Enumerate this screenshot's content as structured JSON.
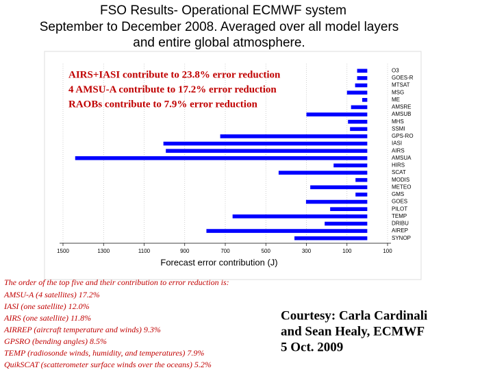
{
  "chart_data": {
    "type": "bar",
    "orientation": "horizontal",
    "title": [
      "FSO Results- Operational ECMWF system",
      "September to December 2008.  Averaged over all model layers",
      "and entire global atmosphere."
    ],
    "xlabel": "Forecast error contribution (J)",
    "categories": [
      "O3",
      "GOES-R",
      "MTSAT",
      "MSG",
      "ME",
      "AMSRE",
      "AMSUB",
      "MHS",
      "SSMI",
      "GPS-RO",
      "IASI",
      "AIRS",
      "AMSUA",
      "HIRS",
      "SCAT",
      "MODIS",
      "METEO",
      "GMS",
      "GOES",
      "PILOT",
      "TEMP",
      "DRIBU",
      "AIREP",
      "SYNOP"
    ],
    "values": [
      50,
      50,
      60,
      100,
      25,
      80,
      300,
      95,
      85,
      725,
      1005,
      993,
      1440,
      166,
      437,
      58,
      281,
      58,
      302,
      183,
      664,
      210,
      793,
      359
    ],
    "color": "#0000ff",
    "xlim": [
      1500,
      -100
    ],
    "xticks": [
      1500,
      1300,
      1100,
      900,
      700,
      500,
      300,
      100,
      {
        "value": -100,
        "label": "100"
      }
    ],
    "grid": true,
    "annotations": [
      "AIRS+IASI contribute to 23.8% error reduction",
      "4 AMSU-A contribute to 17.2% error reduction",
      "RAOBs contribute to 7.9% error reduction"
    ]
  },
  "notes": {
    "heading": "The order of the top five and their contribution to error reduction is:",
    "lines": [
      "AMSU-A (4 satellites)  17.2%",
      "IASI (one satellite) 12.0%",
      "AIRS (one satellite) 11.8%",
      "AIRREP (aircraft temperature and winds) 9.3%",
      "GPSRO (bending angles) 8.5%",
      "TEMP (radiosonde winds, humidity, and temperatures) 7.9%",
      "QuikSCAT (scatterometer surface winds over the oceans) 5.2%"
    ]
  },
  "courtesy": [
    "Courtesy: Carla Cardinali",
    "and Sean Healy, ECMWF",
    "5 Oct. 2009"
  ]
}
